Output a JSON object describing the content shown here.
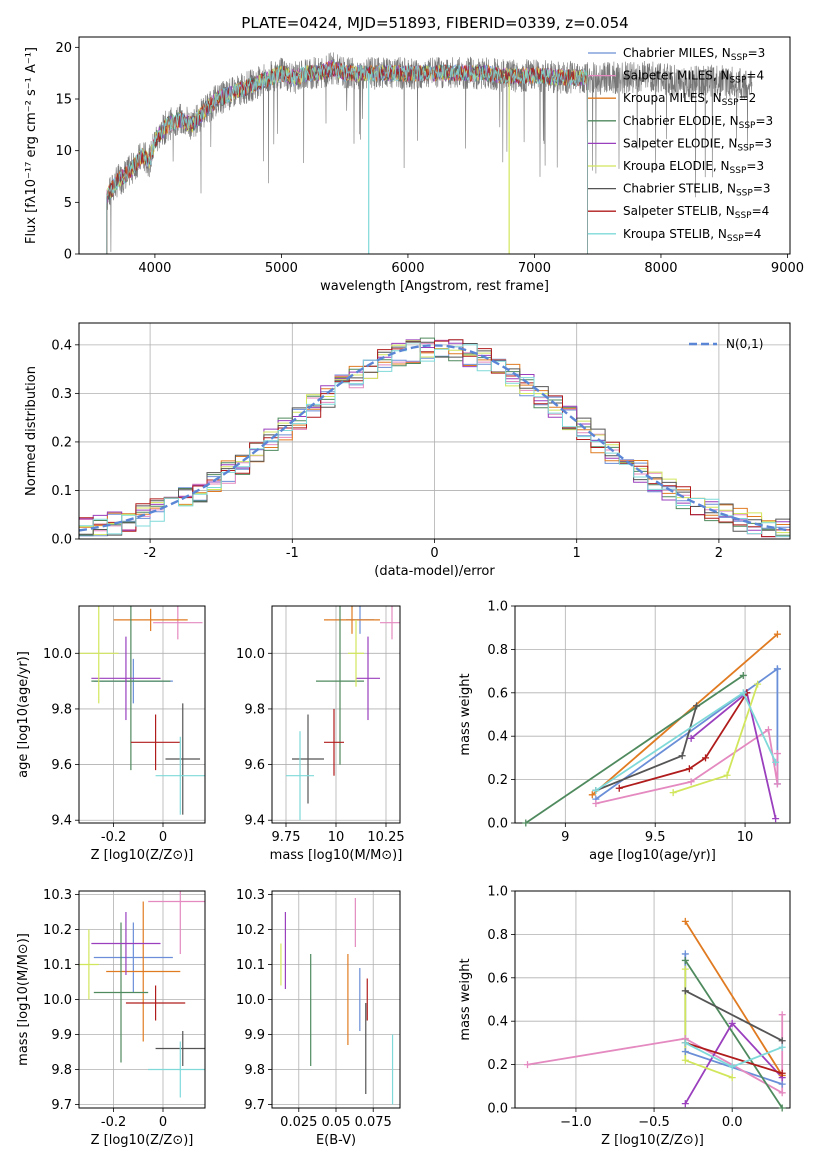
{
  "figure": {
    "title": "PLATE=0424, MJD=51893, FIBERID=0339, z=0.054"
  },
  "models": [
    {
      "label": "Chabrier MILES, N",
      "sub": "SSP",
      "suffix": "=3",
      "color": "#6a8fd8"
    },
    {
      "label": "Salpeter MILES, N",
      "sub": "SSP",
      "suffix": "=4",
      "color": "#e48ac0"
    },
    {
      "label": "Kroupa MILES, N",
      "sub": "SSP",
      "suffix": "=2",
      "color": "#e07b22"
    },
    {
      "label": "Chabrier ELODIE, N",
      "sub": "SSP",
      "suffix": "=3",
      "color": "#4f8a5e"
    },
    {
      "label": "Salpeter ELODIE, N",
      "sub": "SSP",
      "suffix": "=3",
      "color": "#9a3fbd"
    },
    {
      "label": "Kroupa ELODIE, N",
      "sub": "SSP",
      "suffix": "=3",
      "color": "#d2e65c"
    },
    {
      "label": "Chabrier STELIB, N",
      "sub": "SSP",
      "suffix": "=3",
      "color": "#555555"
    },
    {
      "label": "Salpeter STELIB, N",
      "sub": "SSP",
      "suffix": "=4",
      "color": "#b01c1c"
    },
    {
      "label": "Kroupa STELIB, N",
      "sub": "SSP",
      "suffix": "=4",
      "color": "#7fd9d9"
    }
  ],
  "chart_data": [
    {
      "id": "spectrum",
      "type": "line",
      "xlabel": "wavelength [Angstrom, rest frame]",
      "ylabel": "Flux [fλ10⁻¹⁷ erg cm⁻² s⁻¹ A⁻¹]",
      "xlim": [
        3400,
        9020
      ],
      "ylim": [
        0,
        21
      ],
      "xticks": [
        4000,
        5000,
        6000,
        7000,
        8000,
        9000
      ],
      "yticks": [
        0,
        5,
        10,
        15,
        20
      ],
      "data_coverage": [
        3620,
        8720
      ],
      "model_coverage": [
        3620,
        7420
      ],
      "continuum": {
        "x": [
          3620,
          3700,
          3800,
          3900,
          3960,
          4000,
          4100,
          4200,
          4300,
          4400,
          4500,
          4600,
          4700,
          4800,
          4900,
          5000,
          5100,
          5200,
          5300,
          5400,
          5500,
          5600,
          5700,
          5800,
          5900,
          6000,
          6200,
          6400,
          6600,
          6800,
          7000,
          7200,
          7420,
          7600,
          7800,
          8000,
          8200,
          8400,
          8600,
          8720
        ],
        "y": [
          5.5,
          7,
          8,
          9.5,
          9,
          11,
          12.5,
          13,
          12.5,
          14,
          15,
          15.5,
          16,
          16.5,
          17,
          17.5,
          17,
          17.5,
          17.5,
          18,
          17.5,
          17.5,
          17.5,
          17.5,
          17.5,
          17.5,
          17.5,
          17.5,
          17.5,
          17.2,
          17.3,
          17.1,
          17,
          17,
          17.2,
          17,
          16.5,
          16.8,
          16.5,
          16.3
        ]
      }
    },
    {
      "id": "residuals",
      "type": "bar",
      "xlabel": "(data-model)/error",
      "ylabel": "Normed distribution",
      "xlim": [
        -2.5,
        2.5
      ],
      "ylim": [
        0,
        0.445
      ],
      "xticks": [
        -2,
        -1,
        0,
        1,
        2
      ],
      "yticks": [
        0.0,
        0.1,
        0.2,
        0.3,
        0.4
      ],
      "bin_width": 0.1,
      "reference": {
        "name": "N(0,1)",
        "mean": 0,
        "sigma": 1
      }
    },
    {
      "id": "z-age",
      "type": "scatter",
      "xlabel": "Z [log10(Z/Z⊙)]",
      "ylabel": "age  [log10(age/yr)]",
      "xlim": [
        -0.34,
        0.17
      ],
      "ylim": [
        9.39,
        10.17
      ],
      "xticks": [
        -0.2,
        0.0
      ],
      "yticks": [
        9.4,
        9.6,
        9.8,
        10.0
      ],
      "points": [
        {
          "x": -0.12,
          "y": 9.9,
          "xerr": 0.16,
          "yerr": 0.08
        },
        {
          "x": 0.06,
          "y": 10.11,
          "xerr": 0.1,
          "yerr": 0.06
        },
        {
          "x": -0.05,
          "y": 10.12,
          "xerr": 0.15,
          "yerr": 0.04
        },
        {
          "x": -0.13,
          "y": 9.9,
          "xerr": 0.16,
          "yerr": 0.32
        },
        {
          "x": -0.15,
          "y": 9.91,
          "xerr": 0.14,
          "yerr": 0.15
        },
        {
          "x": -0.26,
          "y": 10.0,
          "xerr": 0.08,
          "yerr": 0.18
        },
        {
          "x": 0.08,
          "y": 9.62,
          "xerr": 0.07,
          "yerr": 0.2
        },
        {
          "x": -0.03,
          "y": 9.68,
          "xerr": 0.1,
          "yerr": 0.1
        },
        {
          "x": 0.07,
          "y": 9.56,
          "xerr": 0.1,
          "yerr": 0.14
        }
      ]
    },
    {
      "id": "mass-age",
      "type": "scatter",
      "xlabel": "mass [log10(M/M⊙)]",
      "ylabel": "",
      "xlim": [
        9.68,
        10.32
      ],
      "ylim": [
        9.39,
        10.17
      ],
      "xticks": [
        9.75,
        10.0,
        10.25
      ],
      "yticks": [
        9.4,
        9.6,
        9.8,
        10.0
      ],
      "points": [
        {
          "x": 10.12,
          "y": 10.12,
          "xerr": 0.07,
          "yerr": 0.05
        },
        {
          "x": 10.28,
          "y": 10.11,
          "xerr": 0.06,
          "yerr": 0.06
        },
        {
          "x": 10.08,
          "y": 10.12,
          "xerr": 0.14,
          "yerr": 0.05
        },
        {
          "x": 10.02,
          "y": 9.9,
          "xerr": 0.12,
          "yerr": 0.3
        },
        {
          "x": 10.16,
          "y": 9.91,
          "xerr": 0.06,
          "yerr": 0.15
        },
        {
          "x": 10.1,
          "y": 10.0,
          "xerr": 0.04,
          "yerr": 0.12
        },
        {
          "x": 9.86,
          "y": 9.62,
          "xerr": 0.08,
          "yerr": 0.16
        },
        {
          "x": 9.99,
          "y": 9.68,
          "xerr": 0.05,
          "yerr": 0.12
        },
        {
          "x": 9.82,
          "y": 9.56,
          "xerr": 0.07,
          "yerr": 0.16
        }
      ]
    },
    {
      "id": "age-weight",
      "type": "line",
      "xlabel": "age  [log10(age/yr)]",
      "ylabel": "mass weight",
      "xlim": [
        8.72,
        10.25
      ],
      "ylim": [
        0,
        1.0
      ],
      "xticks": [
        9.0,
        9.5,
        10.0
      ],
      "yticks": [
        0.0,
        0.2,
        0.4,
        0.6,
        0.8,
        1.0
      ],
      "series": [
        {
          "x": [
            9.17,
            10.18,
            10.18,
            10.18
          ],
          "y": [
            0.11,
            0.71,
            0.71,
            0.18
          ]
        },
        {
          "x": [
            9.17,
            9.7,
            10.13,
            10.18,
            10.18
          ],
          "y": [
            0.09,
            0.19,
            0.43,
            0.18,
            0.32
          ]
        },
        {
          "x": [
            9.15,
            10.18
          ],
          "y": [
            0.13,
            0.87
          ]
        },
        {
          "x": [
            8.78,
            9.99
          ],
          "y": [
            0.0,
            0.68
          ]
        },
        {
          "x": [
            9.7,
            10.01,
            10.17
          ],
          "y": [
            0.39,
            0.6,
            0.02
          ]
        },
        {
          "x": [
            9.6,
            9.9,
            10.07
          ],
          "y": [
            0.14,
            0.22,
            0.64
          ]
        },
        {
          "x": [
            9.17,
            9.65,
            9.73
          ],
          "y": [
            0.15,
            0.31,
            0.54
          ]
        },
        {
          "x": [
            9.3,
            9.69,
            9.78,
            10.01
          ],
          "y": [
            0.16,
            0.25,
            0.3,
            0.6
          ]
        },
        {
          "x": [
            9.17,
            9.99,
            10.17
          ],
          "y": [
            0.15,
            0.6,
            0.28
          ]
        }
      ]
    },
    {
      "id": "z-mass",
      "type": "scatter",
      "xlabel": "Z [log10(Z/Z⊙)]",
      "ylabel": "mass [log10(M/M⊙)]",
      "xlim": [
        -0.34,
        0.17
      ],
      "ylim": [
        9.69,
        10.31
      ],
      "xticks": [
        -0.2,
        0.0
      ],
      "yticks": [
        9.7,
        9.8,
        9.9,
        10.0,
        10.1,
        10.2,
        10.3
      ],
      "points": [
        {
          "x": -0.12,
          "y": 10.12,
          "xerr": 0.16,
          "yerr": 0.1
        },
        {
          "x": 0.07,
          "y": 10.28,
          "xerr": 0.13,
          "yerr": 0.15
        },
        {
          "x": -0.08,
          "y": 10.08,
          "xerr": 0.15,
          "yerr": 0.2
        },
        {
          "x": -0.17,
          "y": 10.02,
          "xerr": 0.11,
          "yerr": 0.2
        },
        {
          "x": -0.15,
          "y": 10.16,
          "xerr": 0.14,
          "yerr": 0.09
        },
        {
          "x": -0.3,
          "y": 10.1,
          "xerr": 0.04,
          "yerr": 0.1
        },
        {
          "x": 0.08,
          "y": 9.86,
          "xerr": 0.11,
          "yerr": 0.05
        },
        {
          "x": -0.03,
          "y": 9.99,
          "xerr": 0.12,
          "yerr": 0.05
        },
        {
          "x": 0.07,
          "y": 9.8,
          "xerr": 0.13,
          "yerr": 0.08
        }
      ]
    },
    {
      "id": "ebv-mass",
      "type": "scatter",
      "xlabel": "E(B-V)",
      "ylabel": "",
      "xlim": [
        0.007,
        0.093
      ],
      "ylim": [
        9.69,
        10.31
      ],
      "xticks": [
        0.025,
        0.05,
        0.075
      ],
      "yticks": [
        9.7,
        9.8,
        9.9,
        10.0,
        10.1,
        10.2,
        10.3
      ],
      "points": [
        {
          "x": 0.066,
          "y": 10.0,
          "yerr": 0.09
        },
        {
          "x": 0.063,
          "y": 10.22,
          "yerr": 0.07
        },
        {
          "x": 0.058,
          "y": 10.0,
          "yerr": 0.13
        },
        {
          "x": 0.033,
          "y": 9.97,
          "yerr": 0.16
        },
        {
          "x": 0.016,
          "y": 10.14,
          "yerr": 0.11
        },
        {
          "x": 0.013,
          "y": 10.1,
          "yerr": 0.06
        },
        {
          "x": 0.07,
          "y": 9.86,
          "yerr": 0.13
        },
        {
          "x": 0.071,
          "y": 10.0,
          "yerr": 0.06
        },
        {
          "x": 0.088,
          "y": 9.8,
          "yerr": 0.1
        }
      ]
    },
    {
      "id": "z-weight",
      "type": "line",
      "xlabel": "Z [log10(Z/Z⊙)]",
      "ylabel": "mass weight",
      "xlim": [
        -1.39,
        0.37
      ],
      "ylim": [
        0,
        1.0
      ],
      "xticks": [
        -1.0,
        -0.5,
        0.0
      ],
      "yticks": [
        0.0,
        0.2,
        0.4,
        0.6,
        0.8,
        1.0
      ],
      "xticklabels": [
        "−1.0",
        "−0.5",
        "0.0"
      ],
      "series": [
        {
          "x": [
            -0.3,
            -0.3,
            0.32
          ],
          "y": [
            0.71,
            0.26,
            0.11
          ]
        },
        {
          "x": [
            -1.31,
            -0.3,
            0.32,
            0.32
          ],
          "y": [
            0.2,
            0.32,
            0.07,
            0.43
          ]
        },
        {
          "x": [
            -0.3,
            0.32
          ],
          "y": [
            0.86,
            0.15
          ]
        },
        {
          "x": [
            -0.3,
            0.32
          ],
          "y": [
            0.68,
            0.0
          ]
        },
        {
          "x": [
            -0.3,
            0.0,
            0.32
          ],
          "y": [
            0.02,
            0.39,
            0.14
          ]
        },
        {
          "x": [
            -0.3,
            -0.3,
            0.0
          ],
          "y": [
            0.64,
            0.22,
            0.14
          ]
        },
        {
          "x": [
            -0.3,
            0.32
          ],
          "y": [
            0.54,
            0.31
          ]
        },
        {
          "x": [
            -0.3,
            0.32
          ],
          "y": [
            0.3,
            0.16
          ]
        },
        {
          "x": [
            -0.3,
            0.0,
            0.32
          ],
          "y": [
            0.3,
            0.19,
            0.28
          ]
        }
      ]
    }
  ]
}
